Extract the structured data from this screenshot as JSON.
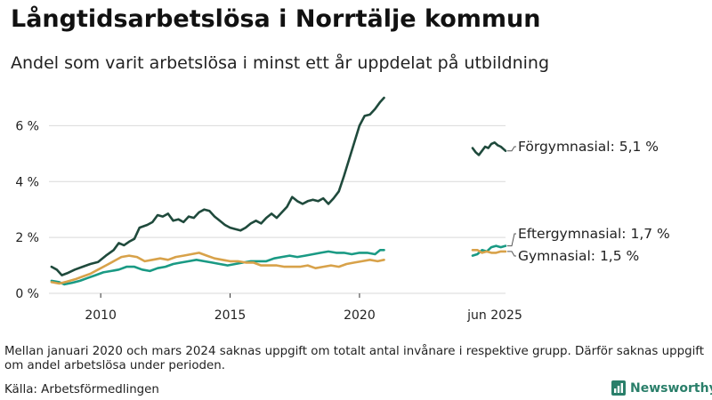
{
  "header": {
    "title": "Långtidsarbetslösa i Norrtälje kommun",
    "subtitle": "Andel som varit arbetslösa i minst ett år uppdelat på utbildning"
  },
  "footer": {
    "note": "Mellan januari 2020 och mars 2024 saknas uppgift om totalt antal invånare i respektive grupp. Därför saknas uppgift om andel arbetslösa under perioden.",
    "source": "Källa: Arbetsförmedlingen",
    "brand": "Newsworthy"
  },
  "icons": {
    "brand_logo": "newsworthy-logo-icon"
  },
  "colors": {
    "forgymnasial": "#1f4a3c",
    "eftergymnasial": "#1a9a84",
    "gymnasial": "#d8a24a",
    "brand": "#2a7f6a",
    "grid": "#d9d9d9"
  },
  "chart_data": {
    "type": "line",
    "title": "Långtidsarbetslösa i Norrtälje kommun",
    "subtitle": "Andel som varit arbetslösa i minst ett år uppdelat på utbildning",
    "xlabel": "",
    "ylabel": "",
    "y_unit": "%",
    "ylim": [
      0,
      7
    ],
    "y_ticks": [
      {
        "value": 0,
        "label": "0 %"
      },
      {
        "value": 2,
        "label": "2 %"
      },
      {
        "value": 4,
        "label": "4 %"
      },
      {
        "value": 6,
        "label": "6 %"
      }
    ],
    "x_ticks": [
      {
        "value": 2010,
        "label": "2010"
      },
      {
        "value": 2015,
        "label": "2015"
      },
      {
        "value": 2020,
        "label": "2020"
      }
    ],
    "end_period_label": "jun 2025",
    "grid": "horizontal",
    "legend": "direct-labels-right",
    "series": [
      {
        "name": "Förgymnasial",
        "end_label": "Förgymnasial: 5,1 %",
        "color": "#1f4a3c",
        "points": [
          [
            2008.1,
            0.95
          ],
          [
            2008.3,
            0.85
          ],
          [
            2008.5,
            0.65
          ],
          [
            2008.7,
            0.72
          ],
          [
            2009.0,
            0.85
          ],
          [
            2009.3,
            0.95
          ],
          [
            2009.6,
            1.05
          ],
          [
            2009.9,
            1.12
          ],
          [
            2010.2,
            1.35
          ],
          [
            2010.5,
            1.55
          ],
          [
            2010.7,
            1.8
          ],
          [
            2010.9,
            1.72
          ],
          [
            2011.1,
            1.85
          ],
          [
            2011.3,
            1.95
          ],
          [
            2011.5,
            2.35
          ],
          [
            2011.8,
            2.45
          ],
          [
            2012.0,
            2.55
          ],
          [
            2012.2,
            2.8
          ],
          [
            2012.4,
            2.75
          ],
          [
            2012.6,
            2.85
          ],
          [
            2012.8,
            2.6
          ],
          [
            2013.0,
            2.65
          ],
          [
            2013.2,
            2.55
          ],
          [
            2013.4,
            2.75
          ],
          [
            2013.6,
            2.7
          ],
          [
            2013.8,
            2.9
          ],
          [
            2014.0,
            3.0
          ],
          [
            2014.2,
            2.95
          ],
          [
            2014.4,
            2.75
          ],
          [
            2014.6,
            2.6
          ],
          [
            2014.8,
            2.45
          ],
          [
            2015.0,
            2.35
          ],
          [
            2015.2,
            2.3
          ],
          [
            2015.4,
            2.25
          ],
          [
            2015.6,
            2.35
          ],
          [
            2015.8,
            2.5
          ],
          [
            2016.0,
            2.6
          ],
          [
            2016.2,
            2.5
          ],
          [
            2016.4,
            2.7
          ],
          [
            2016.6,
            2.85
          ],
          [
            2016.8,
            2.7
          ],
          [
            2017.0,
            2.9
          ],
          [
            2017.2,
            3.1
          ],
          [
            2017.4,
            3.45
          ],
          [
            2017.6,
            3.3
          ],
          [
            2017.8,
            3.2
          ],
          [
            2018.0,
            3.3
          ],
          [
            2018.2,
            3.35
          ],
          [
            2018.4,
            3.3
          ],
          [
            2018.6,
            3.4
          ],
          [
            2018.8,
            3.2
          ],
          [
            2019.0,
            3.4
          ],
          [
            2019.2,
            3.65
          ],
          [
            2019.4,
            4.2
          ],
          [
            2019.6,
            4.8
          ],
          [
            2019.8,
            5.4
          ],
          [
            2020.0,
            6.0
          ],
          [
            2020.2,
            6.35
          ],
          [
            2020.4,
            6.4
          ],
          [
            2020.6,
            6.6
          ],
          [
            2020.8,
            6.85
          ],
          [
            2020.95,
            7.0
          ]
        ],
        "recent_points": [
          [
            2024.25,
            5.2
          ],
          [
            2024.35,
            5.05
          ],
          [
            2024.45,
            4.95
          ],
          [
            2024.55,
            5.1
          ],
          [
            2024.65,
            5.25
          ],
          [
            2024.75,
            5.2
          ],
          [
            2024.85,
            5.35
          ],
          [
            2024.95,
            5.4
          ],
          [
            2025.05,
            5.3
          ],
          [
            2025.15,
            5.25
          ],
          [
            2025.3,
            5.1
          ]
        ]
      },
      {
        "name": "Eftergymnasial",
        "end_label": "Eftergymnasial: 1,7 %",
        "color": "#1a9a84",
        "points": [
          [
            2008.1,
            0.45
          ],
          [
            2008.4,
            0.4
          ],
          [
            2008.6,
            0.32
          ],
          [
            2008.9,
            0.38
          ],
          [
            2009.2,
            0.45
          ],
          [
            2009.5,
            0.55
          ],
          [
            2009.8,
            0.65
          ],
          [
            2010.1,
            0.75
          ],
          [
            2010.4,
            0.8
          ],
          [
            2010.7,
            0.85
          ],
          [
            2011.0,
            0.95
          ],
          [
            2011.3,
            0.95
          ],
          [
            2011.6,
            0.85
          ],
          [
            2011.9,
            0.8
          ],
          [
            2012.2,
            0.9
          ],
          [
            2012.5,
            0.95
          ],
          [
            2012.8,
            1.05
          ],
          [
            2013.1,
            1.1
          ],
          [
            2013.4,
            1.15
          ],
          [
            2013.7,
            1.2
          ],
          [
            2014.0,
            1.15
          ],
          [
            2014.3,
            1.1
          ],
          [
            2014.6,
            1.05
          ],
          [
            2014.9,
            1.0
          ],
          [
            2015.2,
            1.05
          ],
          [
            2015.5,
            1.1
          ],
          [
            2015.8,
            1.15
          ],
          [
            2016.1,
            1.15
          ],
          [
            2016.4,
            1.15
          ],
          [
            2016.7,
            1.25
          ],
          [
            2017.0,
            1.3
          ],
          [
            2017.3,
            1.35
          ],
          [
            2017.6,
            1.3
          ],
          [
            2017.9,
            1.35
          ],
          [
            2018.2,
            1.4
          ],
          [
            2018.5,
            1.45
          ],
          [
            2018.8,
            1.5
          ],
          [
            2019.1,
            1.45
          ],
          [
            2019.4,
            1.45
          ],
          [
            2019.7,
            1.4
          ],
          [
            2020.0,
            1.45
          ],
          [
            2020.3,
            1.45
          ],
          [
            2020.6,
            1.4
          ],
          [
            2020.8,
            1.55
          ],
          [
            2020.95,
            1.55
          ]
        ],
        "recent_points": [
          [
            2024.25,
            1.35
          ],
          [
            2024.4,
            1.4
          ],
          [
            2024.55,
            1.55
          ],
          [
            2024.7,
            1.5
          ],
          [
            2024.85,
            1.65
          ],
          [
            2025.0,
            1.7
          ],
          [
            2025.15,
            1.65
          ],
          [
            2025.3,
            1.7
          ]
        ]
      },
      {
        "name": "Gymnasial",
        "end_label": "Gymnasial: 1,5 %",
        "color": "#d8a24a",
        "points": [
          [
            2008.1,
            0.4
          ],
          [
            2008.4,
            0.35
          ],
          [
            2008.7,
            0.42
          ],
          [
            2009.0,
            0.5
          ],
          [
            2009.3,
            0.6
          ],
          [
            2009.6,
            0.7
          ],
          [
            2009.9,
            0.85
          ],
          [
            2010.2,
            1.0
          ],
          [
            2010.5,
            1.15
          ],
          [
            2010.8,
            1.3
          ],
          [
            2011.1,
            1.35
          ],
          [
            2011.4,
            1.3
          ],
          [
            2011.7,
            1.15
          ],
          [
            2012.0,
            1.2
          ],
          [
            2012.3,
            1.25
          ],
          [
            2012.6,
            1.2
          ],
          [
            2012.9,
            1.3
          ],
          [
            2013.2,
            1.35
          ],
          [
            2013.5,
            1.4
          ],
          [
            2013.8,
            1.45
          ],
          [
            2014.1,
            1.35
          ],
          [
            2014.4,
            1.25
          ],
          [
            2014.7,
            1.2
          ],
          [
            2015.0,
            1.15
          ],
          [
            2015.3,
            1.15
          ],
          [
            2015.6,
            1.1
          ],
          [
            2015.9,
            1.1
          ],
          [
            2016.2,
            1.0
          ],
          [
            2016.5,
            1.0
          ],
          [
            2016.8,
            1.0
          ],
          [
            2017.1,
            0.95
          ],
          [
            2017.4,
            0.95
          ],
          [
            2017.7,
            0.95
          ],
          [
            2018.0,
            1.0
          ],
          [
            2018.3,
            0.9
          ],
          [
            2018.6,
            0.95
          ],
          [
            2018.9,
            1.0
          ],
          [
            2019.2,
            0.95
          ],
          [
            2019.5,
            1.05
          ],
          [
            2019.8,
            1.1
          ],
          [
            2020.1,
            1.15
          ],
          [
            2020.4,
            1.2
          ],
          [
            2020.7,
            1.15
          ],
          [
            2020.95,
            1.2
          ]
        ],
        "recent_points": [
          [
            2024.25,
            1.55
          ],
          [
            2024.4,
            1.55
          ],
          [
            2024.55,
            1.45
          ],
          [
            2024.7,
            1.5
          ],
          [
            2024.85,
            1.45
          ],
          [
            2025.0,
            1.45
          ],
          [
            2025.15,
            1.5
          ],
          [
            2025.3,
            1.5
          ]
        ]
      }
    ]
  }
}
